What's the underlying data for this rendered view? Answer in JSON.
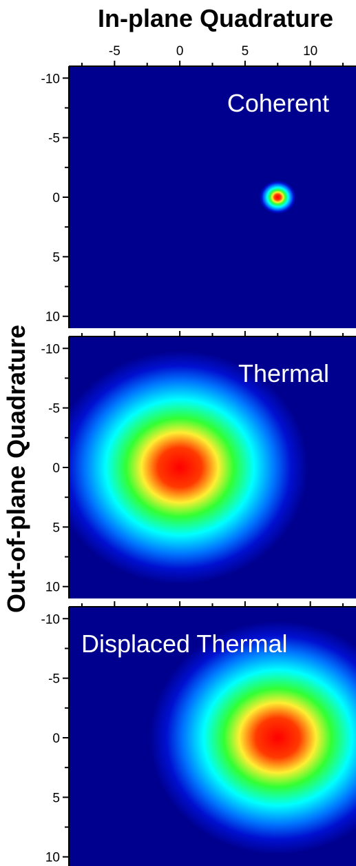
{
  "chart_data": {
    "type": "heatmap",
    "xlabel": "In-plane Quadrature",
    "ylabel": "Out-of-plane Quadrature",
    "xlim": [
      -8.5,
      13.5
    ],
    "ylim": [
      -11,
      11
    ],
    "y_inverted": true,
    "x_ticks": [
      -5,
      0,
      5,
      10
    ],
    "x_tick_labels": [
      "-5",
      "0",
      "5",
      "10"
    ],
    "y_ticks": [
      -10,
      -5,
      0,
      5,
      10
    ],
    "y_tick_labels": [
      "-10",
      "-5",
      "0",
      "5",
      "10"
    ],
    "colormap": "jet",
    "background_color": "#00008f",
    "panels": [
      {
        "label": "Coherent",
        "label_position": "top-right",
        "center_x": 7.5,
        "center_y": 0,
        "width": 0.5
      },
      {
        "label": "Thermal",
        "label_position": "top-right",
        "center_x": 0,
        "center_y": 0,
        "width": 3.5
      },
      {
        "label": "Displaced Thermal",
        "label_position": "top-left",
        "center_x": 7.5,
        "center_y": 0,
        "width": 3.5
      }
    ]
  }
}
